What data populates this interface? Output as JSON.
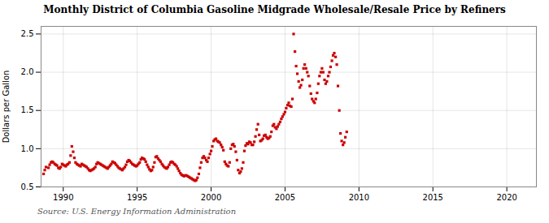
{
  "chart_data": {
    "type": "scatter",
    "title": "Monthly District of Columbia Gasoline Midgrade Wholesale/Resale Price by Refiners",
    "ylabel": "Dollars per Gallon",
    "source": "Source: U.S. Energy Information Administration",
    "color": "#cc0000",
    "marker": "square",
    "grid": true,
    "xlim": [
      1988.5,
      2022
    ],
    "ylim": [
      0.5,
      2.6
    ],
    "xticks": [
      1990,
      1995,
      2000,
      2005,
      2010,
      2015,
      2020
    ],
    "yticks": [
      0.5,
      {
        "value": 1.0,
        "label": "1.0"
      },
      1.5,
      {
        "value": 2.0,
        "label": "2.0"
      },
      2.5
    ],
    "x": [
      1988.67,
      1988.75,
      1988.83,
      1989.0,
      1989.08,
      1989.17,
      1989.25,
      1989.33,
      1989.42,
      1989.5,
      1989.58,
      1989.67,
      1989.75,
      1989.83,
      1989.92,
      1990.0,
      1990.08,
      1990.17,
      1990.25,
      1990.33,
      1990.42,
      1990.5,
      1990.58,
      1990.67,
      1990.75,
      1990.83,
      1990.92,
      1991.0,
      1991.08,
      1991.17,
      1991.25,
      1991.33,
      1991.42,
      1991.5,
      1991.58,
      1991.67,
      1991.75,
      1991.83,
      1991.92,
      1992.0,
      1992.08,
      1992.17,
      1992.25,
      1992.33,
      1992.42,
      1992.5,
      1992.58,
      1992.67,
      1992.75,
      1992.83,
      1992.92,
      1993.0,
      1993.08,
      1993.17,
      1993.25,
      1993.33,
      1993.42,
      1993.5,
      1993.58,
      1993.67,
      1993.75,
      1993.83,
      1993.92,
      1994.0,
      1994.08,
      1994.17,
      1994.25,
      1994.33,
      1994.42,
      1994.5,
      1994.58,
      1994.67,
      1994.75,
      1994.83,
      1994.92,
      1995.0,
      1995.08,
      1995.17,
      1995.25,
      1995.33,
      1995.42,
      1995.5,
      1995.58,
      1995.67,
      1995.75,
      1995.83,
      1995.92,
      1996.0,
      1996.08,
      1996.17,
      1996.25,
      1996.33,
      1996.42,
      1996.5,
      1996.58,
      1996.67,
      1996.75,
      1996.83,
      1996.92,
      1997.0,
      1997.08,
      1997.17,
      1997.25,
      1997.33,
      1997.42,
      1997.5,
      1997.58,
      1997.67,
      1997.75,
      1997.83,
      1997.92,
      1998.0,
      1998.08,
      1998.17,
      1998.25,
      1998.33,
      1998.42,
      1998.5,
      1998.58,
      1998.67,
      1998.75,
      1998.83,
      1998.92,
      1999.0,
      1999.08,
      1999.17,
      1999.25,
      1999.33,
      1999.42,
      1999.5,
      1999.58,
      1999.67,
      1999.75,
      1999.83,
      1999.92,
      2000.0,
      2000.08,
      2000.17,
      2000.25,
      2000.33,
      2000.42,
      2000.5,
      2000.58,
      2000.67,
      2000.75,
      2000.83,
      2000.92,
      2001.0,
      2001.08,
      2001.17,
      2001.25,
      2001.33,
      2001.42,
      2001.5,
      2001.58,
      2001.67,
      2001.75,
      2001.83,
      2001.92,
      2002.0,
      2002.08,
      2002.17,
      2002.25,
      2002.33,
      2002.42,
      2002.5,
      2002.58,
      2002.67,
      2002.75,
      2002.83,
      2002.92,
      2003.0,
      2003.08,
      2003.17,
      2003.25,
      2003.33,
      2003.42,
      2003.5,
      2003.58,
      2003.67,
      2003.75,
      2003.83,
      2003.92,
      2004.0,
      2004.08,
      2004.17,
      2004.25,
      2004.33,
      2004.42,
      2004.5,
      2004.58,
      2004.67,
      2004.75,
      2004.83,
      2004.92,
      2005.0,
      2005.08,
      2005.17,
      2005.25,
      2005.33,
      2005.42,
      2005.5,
      2005.58,
      2005.67,
      2005.75,
      2005.83,
      2005.92,
      2006.0,
      2006.08,
      2006.17,
      2006.25,
      2006.33,
      2006.42,
      2006.5,
      2006.58,
      2006.67,
      2006.75,
      2006.83,
      2006.92,
      2007.0,
      2007.08,
      2007.17,
      2007.25,
      2007.33,
      2007.42,
      2007.5,
      2007.58,
      2007.67,
      2007.75,
      2007.83,
      2007.92,
      2008.0,
      2008.08,
      2008.17,
      2008.25,
      2008.33,
      2008.42,
      2008.5,
      2008.58,
      2008.67,
      2008.75,
      2008.83,
      2008.92,
      2009.0,
      2009.08,
      2009.17
    ],
    "values": [
      0.67,
      0.72,
      0.76,
      0.75,
      0.79,
      0.82,
      0.83,
      0.82,
      0.8,
      0.79,
      0.78,
      0.75,
      0.74,
      0.76,
      0.8,
      0.79,
      0.78,
      0.77,
      0.79,
      0.8,
      0.82,
      0.91,
      1.03,
      0.96,
      0.88,
      0.82,
      0.8,
      0.79,
      0.78,
      0.77,
      0.8,
      0.79,
      0.78,
      0.77,
      0.76,
      0.74,
      0.72,
      0.71,
      0.72,
      0.73,
      0.74,
      0.76,
      0.8,
      0.82,
      0.81,
      0.8,
      0.79,
      0.78,
      0.77,
      0.76,
      0.75,
      0.74,
      0.76,
      0.78,
      0.8,
      0.83,
      0.82,
      0.81,
      0.79,
      0.77,
      0.75,
      0.74,
      0.73,
      0.72,
      0.74,
      0.76,
      0.79,
      0.83,
      0.85,
      0.84,
      0.82,
      0.8,
      0.79,
      0.78,
      0.77,
      0.78,
      0.8,
      0.82,
      0.86,
      0.88,
      0.87,
      0.86,
      0.83,
      0.79,
      0.76,
      0.73,
      0.71,
      0.72,
      0.76,
      0.82,
      0.89,
      0.9,
      0.87,
      0.85,
      0.83,
      0.8,
      0.78,
      0.76,
      0.75,
      0.74,
      0.76,
      0.79,
      0.82,
      0.83,
      0.82,
      0.8,
      0.79,
      0.77,
      0.74,
      0.71,
      0.68,
      0.66,
      0.65,
      0.64,
      0.65,
      0.65,
      0.64,
      0.63,
      0.62,
      0.61,
      0.6,
      0.59,
      0.58,
      0.59,
      0.62,
      0.67,
      0.75,
      0.82,
      0.88,
      0.9,
      0.88,
      0.85,
      0.83,
      0.88,
      0.93,
      0.97,
      1.03,
      1.1,
      1.12,
      1.13,
      1.1,
      1.09,
      1.08,
      1.05,
      1.02,
      0.98,
      0.83,
      0.8,
      0.78,
      0.77,
      0.82,
      1.0,
      1.05,
      1.06,
      1.03,
      0.96,
      0.85,
      0.72,
      0.68,
      0.7,
      0.74,
      0.82,
      0.97,
      1.04,
      1.07,
      1.06,
      1.09,
      1.08,
      1.05,
      1.05,
      1.09,
      1.16,
      1.25,
      1.32,
      1.18,
      1.1,
      1.11,
      1.13,
      1.17,
      1.18,
      1.15,
      1.13,
      1.14,
      1.16,
      1.22,
      1.3,
      1.32,
      1.28,
      1.26,
      1.29,
      1.32,
      1.35,
      1.39,
      1.42,
      1.45,
      1.48,
      1.53,
      1.57,
      1.6,
      1.56,
      1.55,
      1.65,
      2.5,
      2.27,
      2.08,
      1.98,
      1.88,
      1.8,
      1.83,
      1.9,
      2.05,
      2.1,
      2.05,
      2.0,
      1.95,
      1.82,
      1.72,
      1.65,
      1.62,
      1.6,
      1.65,
      1.73,
      1.85,
      1.95,
      2.0,
      2.05,
      2.0,
      1.9,
      1.85,
      1.88,
      1.95,
      2.0,
      2.07,
      2.15,
      2.22,
      2.25,
      2.2,
      2.1,
      1.82,
      1.5,
      1.2,
      1.1,
      1.05,
      1.08,
      1.15,
      1.22
    ]
  }
}
